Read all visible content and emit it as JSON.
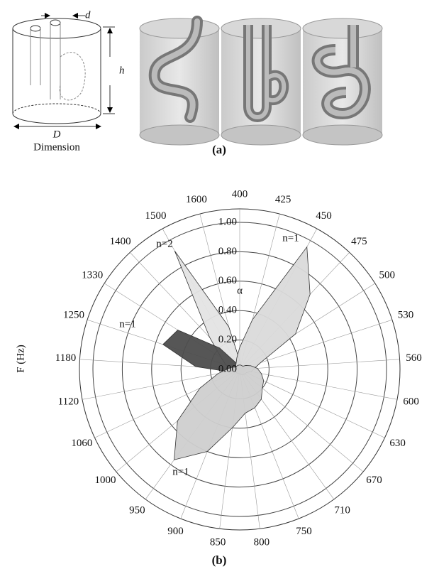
{
  "panel_a": {
    "d_label": "d",
    "h_label": "h",
    "D_label": "D",
    "caption": "Dimension",
    "label": "(a)"
  },
  "panel_b_label": "(b)",
  "chart_data": {
    "type": "radar",
    "y_label": "F (Hz)",
    "categories": [
      "400",
      "425",
      "450",
      "475",
      "500",
      "530",
      "560",
      "600",
      "630",
      "670",
      "710",
      "750",
      "800",
      "850",
      "900",
      "950",
      "1000",
      "1060",
      "1120",
      "1180",
      "1250",
      "1330",
      "1400",
      "1500",
      "1600"
    ],
    "rlim": [
      0,
      1
    ],
    "rticks": [
      {
        "value": 0,
        "label": "0.00"
      },
      {
        "value": 0.2,
        "label": "0.20"
      },
      {
        "value": 0.4,
        "label": "0.40"
      },
      {
        "value": 0.6,
        "label": "0.60"
      },
      {
        "value": 0.8,
        "label": "0.80"
      },
      {
        "value": 1,
        "label": "1.00"
      }
    ],
    "annotations": [
      "n=1",
      "n=2",
      "α",
      "n=1",
      "n=1"
    ],
    "series": [
      {
        "color": "#e4e4e4",
        "values": [
          0.06,
          0.03,
          0.03,
          0.03,
          0.03,
          0.03,
          0.03,
          0.03,
          0.03,
          0.03,
          0.03,
          0.03,
          0.03,
          0.03,
          0.03,
          0.03,
          0.03,
          0.03,
          0.03,
          0.05,
          0.1,
          0.15,
          0.3,
          0.92,
          0.3
        ]
      },
      {
        "color": "#4d4d4d",
        "values": [
          0.02,
          0.02,
          0.02,
          0.02,
          0.02,
          0.02,
          0.02,
          0.02,
          0.02,
          0.02,
          0.02,
          0.02,
          0.02,
          0.02,
          0.02,
          0.02,
          0.02,
          0.02,
          0.08,
          0.3,
          0.55,
          0.5,
          0.2,
          0.05,
          0.02
        ]
      },
      {
        "color": "#dadada",
        "values": [
          0.15,
          0.35,
          0.95,
          0.7,
          0.45,
          0.15,
          0.1,
          0.08,
          0.05,
          0.05,
          0.04,
          0.04,
          0.03,
          0.03,
          0.03,
          0.03,
          0.03,
          0.03,
          0.03,
          0.03,
          0.03,
          0.03,
          0.04,
          0.05,
          0.08
        ]
      },
      {
        "color": "#cfcfcf",
        "values": [
          0.03,
          0.03,
          0.03,
          0.03,
          0.05,
          0.08,
          0.12,
          0.15,
          0.18,
          0.2,
          0.25,
          0.28,
          0.3,
          0.4,
          0.6,
          0.76,
          0.55,
          0.3,
          0.15,
          0.08,
          0.05,
          0.03,
          0.03,
          0.03,
          0.03
        ]
      }
    ]
  }
}
